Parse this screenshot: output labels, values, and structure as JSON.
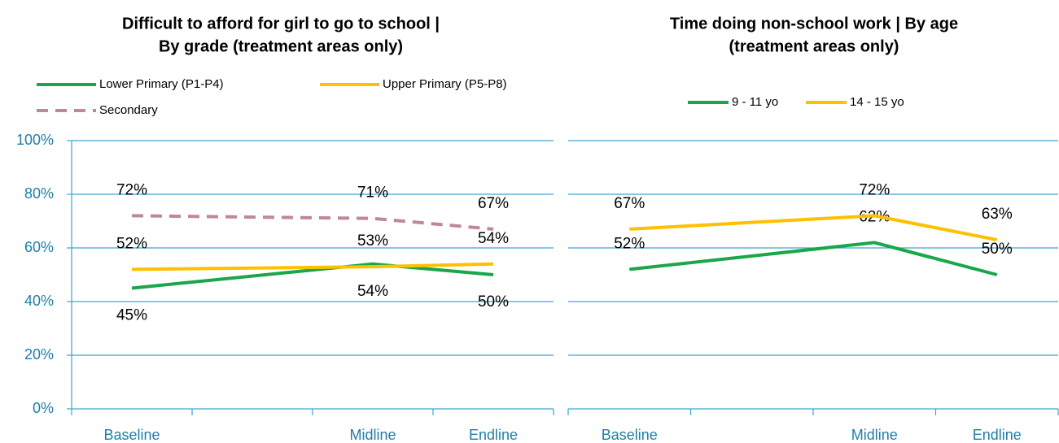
{
  "chart_data": [
    {
      "type": "line",
      "title": [
        "Difficult to afford for girl to go to school |",
        "By grade (treatment areas only)"
      ],
      "categories": [
        "Baseline",
        null,
        "Midline",
        "Endline"
      ],
      "series": [
        {
          "name": "Lower Primary (P1-P4)",
          "color": "#1aa64a",
          "dashed": false,
          "values": [
            45,
            null,
            54,
            50
          ],
          "value_labels": [
            "45%",
            null,
            "54%",
            "50%"
          ]
        },
        {
          "name": "Upper Primary (P5-P8)",
          "color": "#ffc000",
          "dashed": false,
          "values": [
            52,
            null,
            53,
            54
          ],
          "value_labels": [
            "52%",
            null,
            "53%",
            "54%"
          ]
        },
        {
          "name": "Secondary",
          "color": "#c0879c",
          "dashed": true,
          "values": [
            72,
            null,
            71,
            67
          ],
          "value_labels": [
            "72%",
            null,
            "71%",
            "67%"
          ]
        }
      ],
      "ylim": [
        0,
        100
      ],
      "yticks": [
        {
          "value": 0,
          "label": "0%"
        },
        {
          "value": 20,
          "label": "20%"
        },
        {
          "value": 40,
          "label": "40%"
        },
        {
          "value": 60,
          "label": "60%"
        },
        {
          "value": 80,
          "label": "80%"
        },
        {
          "value": 100,
          "label": "100%"
        }
      ],
      "grid": true,
      "span_gaps": true
    },
    {
      "type": "line",
      "title": [
        "Time doing non-school work | By age",
        "(treatment areas only)"
      ],
      "categories": [
        "Baseline",
        null,
        "Midline",
        "Endline"
      ],
      "series": [
        {
          "name": "9 - 11 yo",
          "color": "#1aa64a",
          "dashed": false,
          "values": [
            52,
            null,
            62,
            50
          ],
          "value_labels": [
            "52%",
            null,
            "62%",
            "50%"
          ]
        },
        {
          "name": "14 - 15 yo",
          "color": "#ffc000",
          "dashed": false,
          "values": [
            67,
            null,
            72,
            63
          ],
          "value_labels": [
            "67%",
            null,
            "72%",
            "63%"
          ]
        }
      ],
      "ylim": [
        0,
        100
      ],
      "yticks": [
        0,
        20,
        40,
        60,
        80,
        100
      ],
      "grid": true,
      "span_gaps": true
    }
  ]
}
